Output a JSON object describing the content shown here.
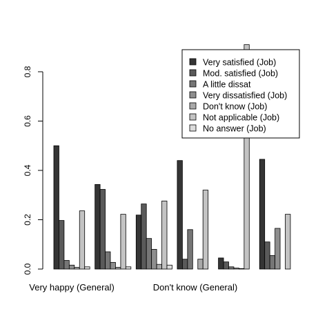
{
  "chart_data": {
    "type": "bar",
    "grouping": "grouped",
    "title": "",
    "xlabel": "",
    "ylabel": "",
    "ylim": [
      0,
      0.9
    ],
    "y_ticks": [
      0.0,
      0.2,
      0.4,
      0.6,
      0.8
    ],
    "y_tick_labels": [
      "0.0",
      "0.2",
      "0.4",
      "0.6",
      "0.8"
    ],
    "grid": false,
    "legend_position": "top-right",
    "categories": [
      "Very happy (General)",
      "",
      "",
      "Don't know (General)",
      "",
      ""
    ],
    "visible_category_labels": [
      "Very happy (General)",
      "Don't know (General)"
    ],
    "series": [
      {
        "name": "Very satisfied (Job)",
        "color": "#353535",
        "values": [
          0.5,
          0.343,
          0.219,
          0.44,
          0.045,
          0.445
        ]
      },
      {
        "name": "Mod. satisfied (Job)",
        "color": "#5a5a5a",
        "values": [
          0.197,
          0.323,
          0.264,
          0.04,
          0.029,
          0.11
        ]
      },
      {
        "name": "A little dissat",
        "color": "#767676",
        "values": [
          0.035,
          0.07,
          0.124,
          0.16,
          0.009,
          0.055
        ]
      },
      {
        "name": "Very dissatisfied (Job)",
        "color": "#8e8e8e",
        "values": [
          0.016,
          0.027,
          0.08,
          0.0,
          0.004,
          0.165
        ]
      },
      {
        "name": "Don't know (Job)",
        "color": "#a9a9a9",
        "values": [
          0.007,
          0.007,
          0.019,
          0.04,
          0.002,
          0.0
        ]
      },
      {
        "name": "Not applicable (Job)",
        "color": "#c3c3c3",
        "values": [
          0.236,
          0.222,
          0.276,
          0.32,
          0.91,
          0.222
        ]
      },
      {
        "name": "No answer (Job)",
        "color": "#dcdcdc",
        "values": [
          0.009,
          0.009,
          0.016,
          0.0,
          0.0,
          0.0
        ]
      }
    ]
  }
}
